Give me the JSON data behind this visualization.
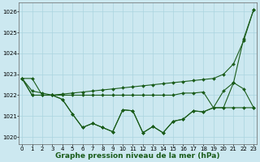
{
  "title": "Graphe pression niveau de la mer (hPa)",
  "background_color": "#cce8f0",
  "grid_color": "#aad4e0",
  "line_color": "#1a5c1a",
  "x": [
    0,
    1,
    2,
    3,
    4,
    5,
    6,
    7,
    8,
    9,
    10,
    11,
    12,
    13,
    14,
    15,
    16,
    17,
    18,
    19,
    20,
    21,
    22,
    23
  ],
  "series": {
    "line_zigzag": [
      1022.8,
      1022.8,
      1022.0,
      1022.0,
      1021.8,
      1021.1,
      1020.45,
      1020.65,
      1020.45,
      1020.25,
      1021.3,
      1021.25,
      1020.2,
      1020.5,
      1020.2,
      1020.75,
      1020.85,
      1021.25,
      1021.2,
      1021.4,
      1021.4,
      1022.6,
      1024.7,
      1026.1
    ],
    "line_rising": [
      1022.8,
      1022.2,
      1022.1,
      1022.0,
      1022.05,
      1022.1,
      1022.15,
      1022.2,
      1022.25,
      1022.3,
      1022.35,
      1022.4,
      1022.45,
      1022.5,
      1022.55,
      1022.6,
      1022.65,
      1022.7,
      1022.75,
      1022.8,
      1023.0,
      1023.5,
      1024.6,
      1026.1
    ],
    "line_flat": [
      1022.8,
      1022.0,
      1022.0,
      1022.0,
      1022.0,
      1022.0,
      1022.0,
      1022.0,
      1022.0,
      1022.0,
      1022.0,
      1022.0,
      1022.0,
      1022.0,
      1022.0,
      1022.0,
      1022.1,
      1022.1,
      1022.15,
      1021.4,
      1022.2,
      1022.6,
      1022.3,
      1021.4
    ],
    "line_low": [
      1022.8,
      1022.0,
      1022.0,
      1022.0,
      1021.8,
      1021.1,
      1020.45,
      1020.65,
      1020.45,
      1020.25,
      1021.3,
      1021.25,
      1020.2,
      1020.5,
      1020.2,
      1020.75,
      1020.85,
      1021.25,
      1021.2,
      1021.4,
      1021.4,
      1021.4,
      1021.4,
      1021.4
    ]
  },
  "ylim": [
    1019.65,
    1026.45
  ],
  "yticks": [
    1020,
    1021,
    1022,
    1023,
    1024,
    1025,
    1026
  ],
  "xlim": [
    -0.3,
    23.3
  ],
  "xticks": [
    0,
    1,
    2,
    3,
    4,
    5,
    6,
    7,
    8,
    9,
    10,
    11,
    12,
    13,
    14,
    15,
    16,
    17,
    18,
    19,
    20,
    21,
    22,
    23
  ],
  "marker": "D",
  "marker_size": 2.0,
  "line_width": 0.8,
  "title_fontsize": 6.5,
  "tick_fontsize": 5.0
}
